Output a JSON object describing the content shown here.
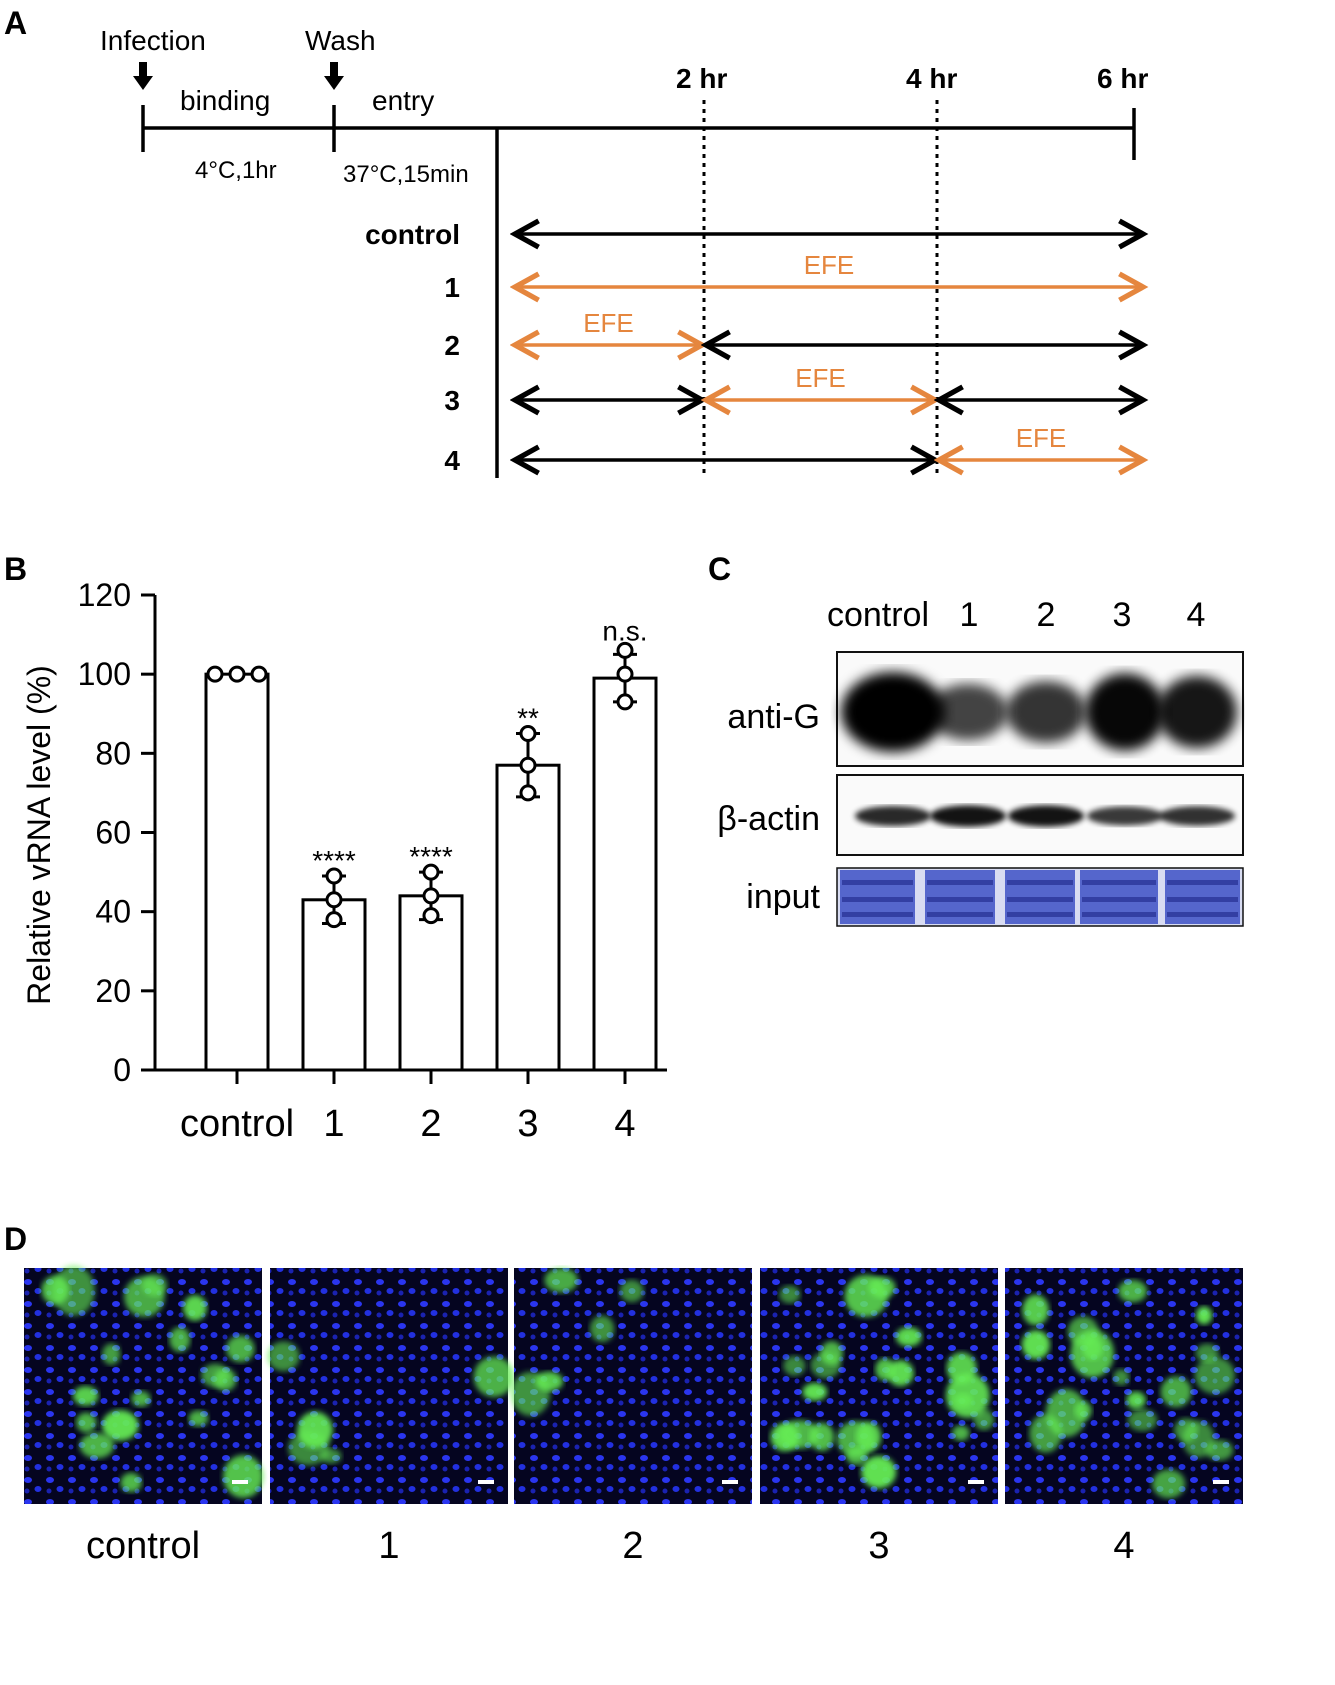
{
  "panels": {
    "a": "A",
    "b": "B",
    "c": "C",
    "d": "D"
  },
  "colors": {
    "efe": "#e5863e",
    "black": "#000000",
    "nuclei": "#1a1aff",
    "infected": "#66ee55",
    "gel": "#5566cc"
  },
  "panel_a": {
    "infection": "Infection",
    "wash": "Wash",
    "binding": "binding",
    "binding_cond": "4°C,1hr",
    "entry": "entry",
    "entry_cond": "37°C,15min",
    "t2": "2 hr",
    "t4": "4 hr",
    "t6": "6 hr",
    "efe_label": "EFE",
    "rows": [
      {
        "label": "control",
        "segments": [
          "black"
        ]
      },
      {
        "label": "1",
        "segments": [
          "efe"
        ]
      },
      {
        "label": "2",
        "segments": [
          "efe",
          "black"
        ]
      },
      {
        "label": "3",
        "segments": [
          "black",
          "efe",
          "black"
        ]
      },
      {
        "label": "4",
        "segments": [
          "black",
          "efe"
        ]
      }
    ]
  },
  "chart_data": {
    "type": "bar",
    "ylabel": "Relative vRNA level (%)",
    "ylim": [
      0,
      120
    ],
    "yticks": [
      "0",
      "20",
      "40",
      "60",
      "80",
      "100",
      "120"
    ],
    "categories": [
      "control",
      "1",
      "2",
      "3",
      "4"
    ],
    "values": [
      100,
      43,
      44,
      77,
      99
    ],
    "error": [
      0,
      6,
      6,
      8,
      6
    ],
    "points": [
      [
        100,
        100,
        100
      ],
      [
        49,
        43,
        38
      ],
      [
        50,
        44,
        39
      ],
      [
        85,
        77,
        70
      ],
      [
        106,
        100,
        93
      ]
    ],
    "significance": [
      "",
      "****",
      "****",
      "**",
      "n.s."
    ],
    "grid": false
  },
  "panel_c": {
    "lanes": [
      "control",
      "1",
      "2",
      "3",
      "4"
    ],
    "rows": [
      "anti-G",
      "β-actin",
      "input"
    ],
    "anti_g_intensity": [
      1.0,
      0.55,
      0.65,
      0.95,
      0.85
    ],
    "actin_intensity": [
      0.8,
      0.95,
      0.95,
      0.7,
      0.75
    ]
  },
  "panel_d": {
    "labels": [
      "control",
      "1",
      "2",
      "3",
      "4"
    ]
  }
}
